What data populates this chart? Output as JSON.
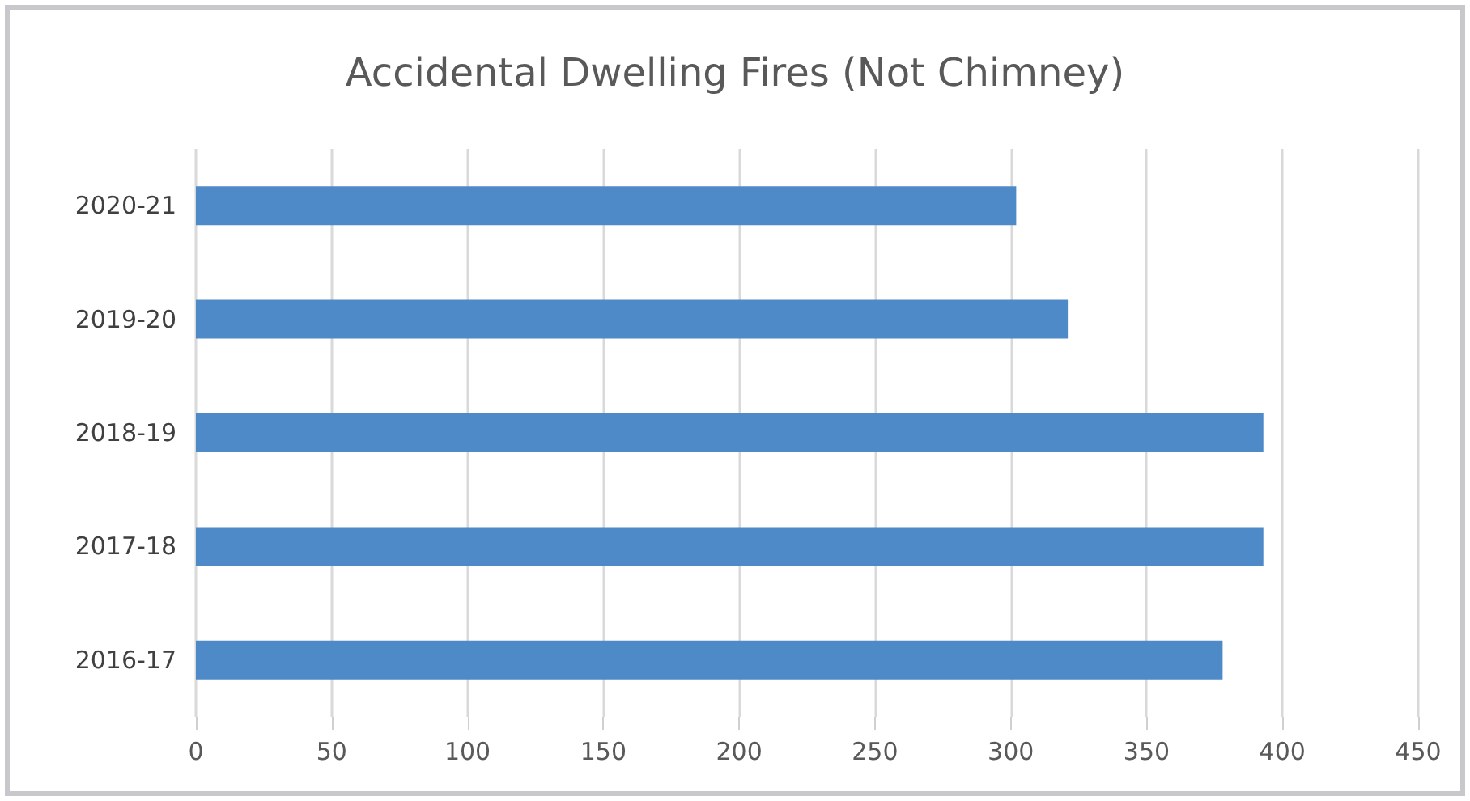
{
  "chart_data": {
    "type": "bar",
    "orientation": "horizontal",
    "title": "Accidental Dwelling Fires (Not Chimney)",
    "categories": [
      "2020-21",
      "2019-20",
      "2018-19",
      "2017-18",
      "2016-17"
    ],
    "values": [
      302,
      321,
      393,
      393,
      378
    ],
    "color": "#4e8ac8",
    "xlim": [
      0,
      450
    ],
    "xticks": [
      0,
      50,
      100,
      150,
      200,
      250,
      300,
      350,
      400,
      450
    ],
    "grid": "x"
  }
}
